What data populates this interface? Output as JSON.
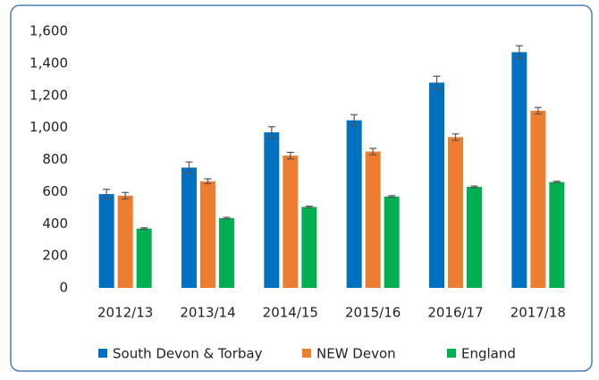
{
  "chart_data": {
    "type": "bar",
    "categories": [
      "2012/13",
      "2013/14",
      "2014/15",
      "2015/16",
      "2016/17",
      "2017/18"
    ],
    "series": [
      {
        "name": "South Devon & Torbay",
        "color": "#0070c0",
        "values": [
          585,
          750,
          970,
          1045,
          1280,
          1470
        ],
        "errors": [
          30,
          35,
          35,
          35,
          40,
          40
        ]
      },
      {
        "name": "NEW Devon",
        "color": "#ed7d31",
        "values": [
          575,
          665,
          825,
          850,
          940,
          1105
        ],
        "errors": [
          20,
          15,
          20,
          20,
          20,
          20
        ]
      },
      {
        "name": "England",
        "color": "#00b050",
        "values": [
          370,
          435,
          505,
          570,
          630,
          660
        ],
        "errors": [
          5,
          5,
          5,
          5,
          5,
          5
        ]
      }
    ],
    "ylim": [
      0,
      1600
    ],
    "yticks": [
      0,
      200,
      400,
      600,
      800,
      {
        "value": 1000,
        "label": "1,000"
      },
      {
        "value": 1200,
        "label": "1,200"
      },
      {
        "value": 1400,
        "label": "1,400"
      },
      {
        "value": 1600,
        "label": "1,600"
      }
    ],
    "legend": "bottom"
  }
}
